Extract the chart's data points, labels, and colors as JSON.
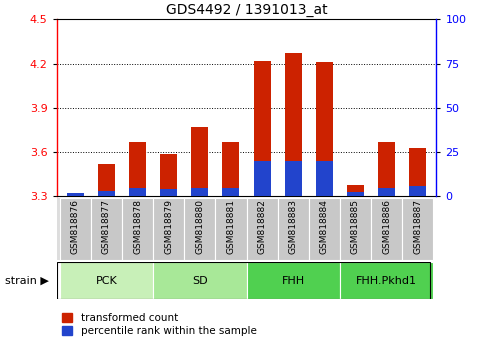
{
  "title": "GDS4492 / 1391013_at",
  "samples": [
    "GSM818876",
    "GSM818877",
    "GSM818878",
    "GSM818879",
    "GSM818880",
    "GSM818881",
    "GSM818882",
    "GSM818883",
    "GSM818884",
    "GSM818885",
    "GSM818886",
    "GSM818887"
  ],
  "red_values": [
    3.32,
    3.52,
    3.67,
    3.59,
    3.77,
    3.67,
    4.22,
    4.27,
    4.21,
    3.38,
    3.67,
    3.63
  ],
  "blue_pct": [
    2.0,
    3.0,
    5.0,
    4.5,
    5.0,
    5.0,
    20.0,
    20.0,
    20.0,
    2.5,
    5.0,
    6.0
  ],
  "ylim_left": [
    3.3,
    4.5
  ],
  "ylim_right": [
    0,
    100
  ],
  "yticks_left": [
    3.3,
    3.6,
    3.9,
    4.2,
    4.5
  ],
  "yticks_right": [
    0,
    25,
    50,
    75,
    100
  ],
  "baseline": 3.3,
  "groups": [
    {
      "label": "PCK",
      "start": 0,
      "end": 2
    },
    {
      "label": "SD",
      "start": 3,
      "end": 5
    },
    {
      "label": "FHH",
      "start": 6,
      "end": 8
    },
    {
      "label": "FHH.Pkhd1",
      "start": 9,
      "end": 11
    }
  ],
  "group_colors": [
    "#c8f0b8",
    "#a8e898",
    "#50d050",
    "#50d050"
  ],
  "bar_width": 0.55,
  "red_color": "#cc2200",
  "blue_color": "#2244cc",
  "sample_bg": "#c8c8c8",
  "legend_items": [
    "transformed count",
    "percentile rank within the sample"
  ]
}
